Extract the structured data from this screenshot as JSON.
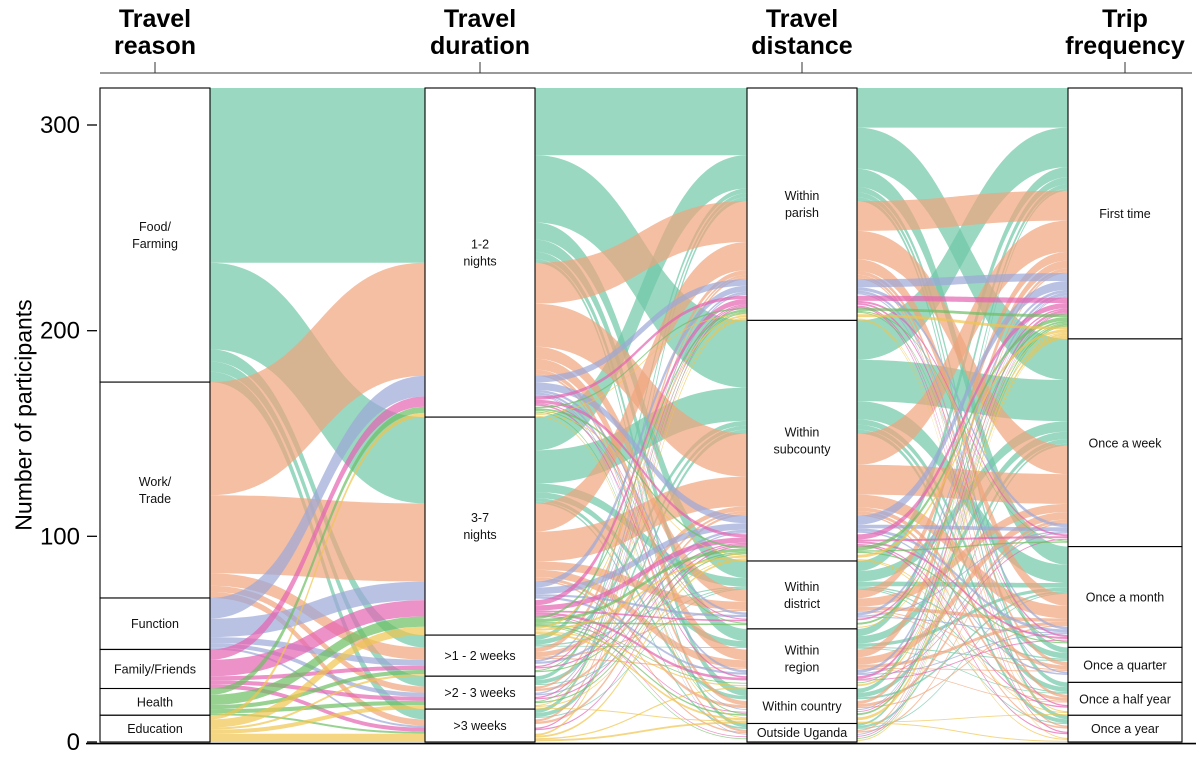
{
  "chart_data": {
    "type": "alluvial",
    "title": "",
    "ylabel": "Number of participants",
    "yticks": [
      0,
      100,
      200,
      300
    ],
    "ylim": [
      0,
      318
    ],
    "total": 318,
    "grid": false,
    "legend_position": "none",
    "axes": [
      {
        "name": "Travel reason",
        "title_lines": [
          "Travel",
          "reason"
        ],
        "nodes": [
          {
            "label": "Food/\nFarming",
            "value": 143
          },
          {
            "label": "Work/\nTrade",
            "value": 105
          },
          {
            "label": "Function",
            "value": 25
          },
          {
            "label": "Family/Friends",
            "value": 19
          },
          {
            "label": "Health",
            "value": 13
          },
          {
            "label": "Education",
            "value": 13
          }
        ]
      },
      {
        "name": "Travel duration",
        "title_lines": [
          "Travel",
          "duration"
        ],
        "nodes": [
          {
            "label": "1-2\nnights",
            "value": 160
          },
          {
            "label": "3-7\nnights",
            "value": 106
          },
          {
            "label": ">1 - 2 weeks",
            "value": 20
          },
          {
            "label": ">2 - 3 weeks",
            "value": 16
          },
          {
            "label": ">3 weeks",
            "value": 16
          }
        ]
      },
      {
        "name": "Travel distance",
        "title_lines": [
          "Travel",
          "distance"
        ],
        "nodes": [
          {
            "label": "Within\nparish",
            "value": 113
          },
          {
            "label": "Within\nsubcounty",
            "value": 117
          },
          {
            "label": "Within\ndistrict",
            "value": 33
          },
          {
            "label": "Within\nregion",
            "value": 29
          },
          {
            "label": "Within country",
            "value": 17
          },
          {
            "label": "Outside Uganda",
            "value": 9
          }
        ]
      },
      {
        "name": "Trip frequency",
        "title_lines": [
          "Trip",
          "frequency"
        ],
        "nodes": [
          {
            "label": "First time",
            "value": 122
          },
          {
            "label": "Once a week",
            "value": 101
          },
          {
            "label": "Once a month",
            "value": 49
          },
          {
            "label": "Once a quarter",
            "value": 17
          },
          {
            "label": "Once a half year",
            "value": 16
          },
          {
            "label": "Once a year",
            "value": 13
          }
        ]
      }
    ],
    "reasons": [
      {
        "name": "Food/Farming",
        "color": "#6fc8a7",
        "total": 143,
        "duration": [
          85,
          42,
          6,
          5,
          5
        ],
        "distance": [
          55,
          55,
          14,
          10,
          6,
          3
        ],
        "frequency": [
          50,
          52,
          23,
          7,
          6,
          5
        ]
      },
      {
        "name": "Work/Trade",
        "color": "#f0a47c",
        "total": 105,
        "duration": [
          55,
          38,
          6,
          3,
          3
        ],
        "distance": [
          38,
          40,
          11,
          10,
          4,
          2
        ],
        "frequency": [
          40,
          38,
          16,
          5,
          4,
          2
        ]
      },
      {
        "name": "Function",
        "color": "#9da8d8",
        "total": 25,
        "duration": [
          10,
          9,
          3,
          2,
          1
        ],
        "distance": [
          8,
          9,
          3,
          3,
          1,
          1
        ],
        "frequency": [
          12,
          5,
          4,
          2,
          1,
          1
        ]
      },
      {
        "name": "Family/Friends",
        "color": "#e563b2",
        "total": 19,
        "duration": [
          5,
          8,
          2,
          2,
          2
        ],
        "distance": [
          6,
          6,
          2,
          3,
          1,
          1
        ],
        "frequency": [
          8,
          3,
          3,
          1,
          2,
          2
        ]
      },
      {
        "name": "Health",
        "color": "#6cbf63",
        "total": 13,
        "duration": [
          3,
          5,
          2,
          2,
          1
        ],
        "distance": [
          3,
          4,
          2,
          1,
          2,
          1
        ],
        "frequency": [
          6,
          2,
          2,
          1,
          1,
          1
        ]
      },
      {
        "name": "Education",
        "color": "#f0c54e",
        "total": 13,
        "duration": [
          2,
          4,
          1,
          2,
          4
        ],
        "distance": [
          3,
          3,
          1,
          2,
          3,
          1
        ],
        "frequency": [
          6,
          1,
          1,
          1,
          2,
          2
        ]
      }
    ]
  }
}
